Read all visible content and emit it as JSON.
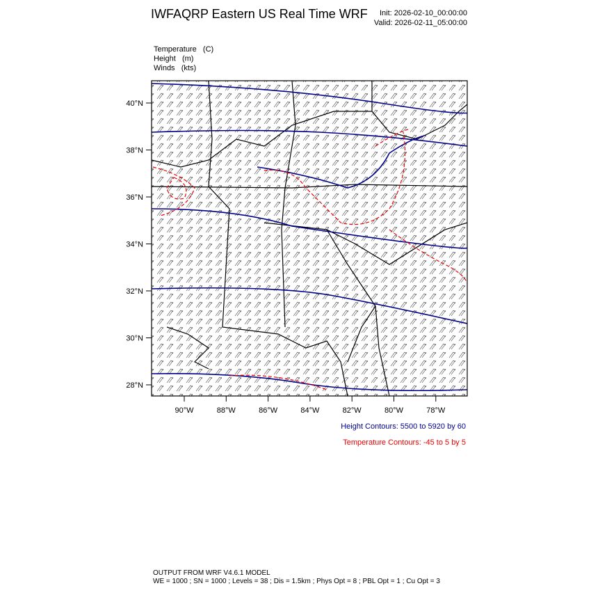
{
  "header": {
    "title": "IWFAQRP Eastern US Real Time WRF",
    "init": "Init: 2026-02-10_00:00:00",
    "valid": "Valid: 2026-02-11_05:00:00"
  },
  "fields": [
    "Temperature   (C)",
    "Height   (m)",
    "Winds   (kts)"
  ],
  "lat_labels": [
    "40°N",
    "38°N",
    "36°N",
    "34°N",
    "32°N",
    "30°N",
    "28°N"
  ],
  "lon_labels": [
    "90°W",
    "88°W",
    "86°W",
    "84°W",
    "82°W",
    "80°W",
    "78°W"
  ],
  "notes": {
    "height": "Height Contours: 5500 to 5920 by 60",
    "temperature": "Temperature Contours: -45 to 5 by 5"
  },
  "footer": [
    "OUTPUT FROM WRF V4.6.1 MODEL",
    "WE = 1000 ; SN = 1000 ; Levels = 38 ; Dis = 1.5km ; Phys Opt = 8 ; PBL Opt = 1 ; Cu Opt = 3"
  ]
}
